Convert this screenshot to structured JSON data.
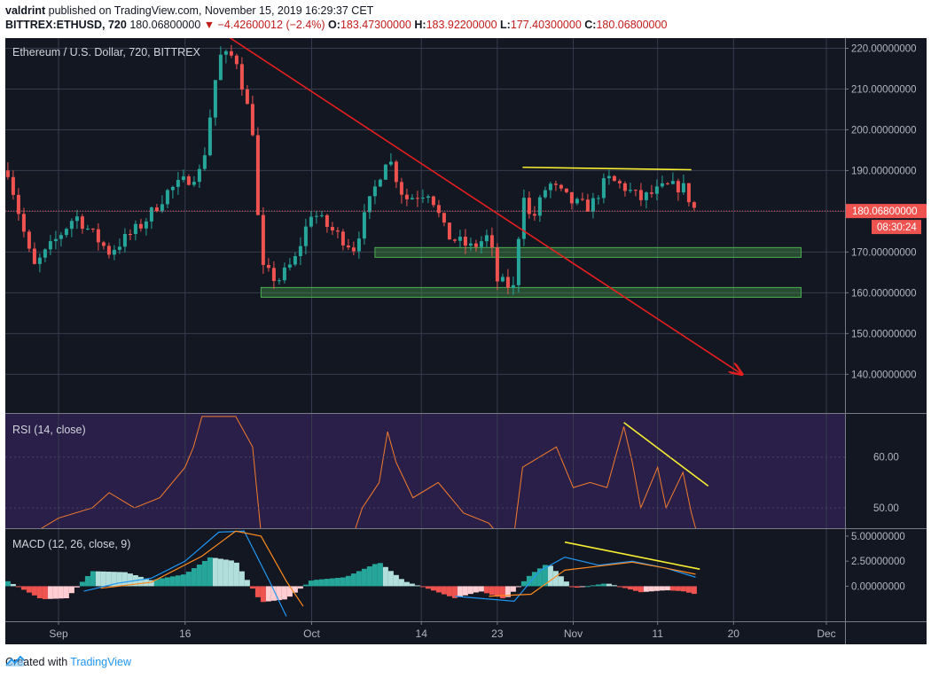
{
  "header": {
    "author": "valdrint",
    "published_text": "published on TradingView.com, November 15, 2019 16:29:37 CET",
    "symbol_line": "BITTREX:ETHUSD, 720",
    "last_price": "180.06800000",
    "change_icon": "down-triangle-icon",
    "change": "−4.42600012 (−2.4%)",
    "ohlc": [
      {
        "label": "O:",
        "value": "183.47300000"
      },
      {
        "label": "H:",
        "value": "183.92200000"
      },
      {
        "label": "L:",
        "value": "177.40300000"
      },
      {
        "label": "C:",
        "value": "180.06800000"
      }
    ]
  },
  "footer": {
    "created_with": "Created with",
    "brand": "TradingView",
    "brand_icon": "tradingview-logo-icon"
  },
  "colors": {
    "background": "#131722",
    "up": "#26a69a",
    "down": "#ef5350",
    "trendline": "#e81e1e",
    "resistance": "#f7ed32",
    "support_zone": "#4caf50",
    "rsi_line": "#f57c2c",
    "rsi_band": "#2a1f48",
    "macd_line": "#2196f3",
    "signal_line": "#ff8a1f"
  },
  "chart_data": [
    {
      "type": "candlestick",
      "title": "Ethereum / U.S. Dollar, 720, BITTREX",
      "x_labels": [
        "Sep",
        "16",
        "Oct",
        "14",
        "23",
        "Nov",
        "11",
        "20",
        "Dec"
      ],
      "y_ticks": [
        "220.00000000",
        "210.00000000",
        "200.00000000",
        "190.00000000",
        "180.00000000",
        "170.00000000",
        "160.00000000",
        "150.00000000",
        "140.00000000"
      ],
      "ylim": [
        130.5,
        222.5
      ],
      "current_price_label": "180.06800000",
      "countdown_label": "08:30:24",
      "segments": [
        [
          "2019-08-26T00:00",
          190
        ],
        [
          "2019-08-29T00:00",
          166
        ],
        [
          "2019-09-03T00:00",
          179
        ],
        [
          "2019-09-07T00:00",
          170
        ],
        [
          "2019-09-11T00:00",
          177
        ],
        [
          "2019-09-14T00:00",
          185
        ],
        [
          "2019-09-18T00:00",
          190
        ],
        [
          "2019-09-20T00:00",
          218
        ],
        [
          "2019-09-22T00:00",
          218
        ],
        [
          "2019-09-24T00:00",
          200
        ],
        [
          "2019-09-25T00:00",
          166
        ],
        [
          "2019-09-27T00:00",
          163
        ],
        [
          "2019-09-29T00:00",
          168
        ],
        [
          "2019-10-01T00:00",
          180
        ],
        [
          "2019-10-03T00:00",
          176
        ],
        [
          "2019-10-06T00:00",
          171
        ],
        [
          "2019-10-08T00:00",
          183
        ],
        [
          "2019-10-10T00:00",
          194
        ],
        [
          "2019-10-12T00:00",
          183
        ],
        [
          "2019-10-15T00:00",
          185
        ],
        [
          "2019-10-17T00:00",
          174
        ],
        [
          "2019-10-20T00:00",
          171
        ],
        [
          "2019-10-22T00:00",
          174
        ],
        [
          "2019-10-23T00:00",
          163
        ],
        [
          "2019-10-25T00:00",
          161
        ],
        [
          "2019-10-26T00:00",
          186
        ],
        [
          "2019-10-27T00:00",
          177
        ],
        [
          "2019-10-29T00:00",
          187
        ],
        [
          "2019-11-01T00:00",
          182
        ],
        [
          "2019-11-03T00:00",
          181
        ],
        [
          "2019-11-05T00:00",
          188
        ],
        [
          "2019-11-07T00:00",
          186
        ],
        [
          "2019-11-09T00:00",
          183
        ],
        [
          "2019-11-12T00:00",
          186
        ],
        [
          "2019-11-14T00:00",
          186
        ],
        [
          "2019-11-15T12:00",
          180
        ]
      ],
      "annotations": {
        "down_trendline": [
          [
            "2019-09-21T00:00",
            223
          ],
          [
            "2019-11-21T00:00",
            140
          ]
        ],
        "resistance_line": [
          [
            "2019-10-26T00:00",
            190.8
          ],
          [
            "2019-11-15T00:00",
            190.2
          ]
        ],
        "support_zones": [
          {
            "from": "2019-10-08T12:00",
            "to": "2019-11-28T00:00",
            "low": 168.7,
            "high": 171.1
          },
          {
            "from": "2019-09-25T00:00",
            "to": "2019-11-28T00:00",
            "low": 158.9,
            "high": 161.3
          }
        ]
      }
    },
    {
      "type": "line",
      "title": "RSI (14, close)",
      "y_ticks": [
        "60.00",
        "50.00"
      ],
      "ylim": [
        46.0,
        68.5
      ],
      "band": [
        45,
        70
      ],
      "series": [
        {
          "values": [
            [
              "2019-08-30T00:00",
              46
            ],
            [
              "2019-09-01T00:00",
              48
            ],
            [
              "2019-09-05T00:00",
              50
            ],
            [
              "2019-09-07T00:00",
              53
            ],
            [
              "2019-09-10T00:00",
              50
            ],
            [
              "2019-09-13T00:00",
              52
            ],
            [
              "2019-09-16T00:00",
              58
            ],
            [
              "2019-09-17T00:00",
              62
            ],
            [
              "2019-09-18T00:00",
              68
            ],
            [
              "2019-09-22T00:00",
              68
            ],
            [
              "2019-09-24T00:00",
              62
            ],
            [
              "2019-09-25T00:00",
              45
            ],
            [
              "2019-10-06T00:00",
              45
            ],
            [
              "2019-10-07T00:00",
              50
            ],
            [
              "2019-10-09T00:00",
              55
            ],
            [
              "2019-10-10T00:00",
              65
            ],
            [
              "2019-10-11T00:00",
              59
            ],
            [
              "2019-10-13T00:00",
              52
            ],
            [
              "2019-10-16T00:00",
              55
            ],
            [
              "2019-10-19T00:00",
              49
            ],
            [
              "2019-10-22T00:00",
              47
            ],
            [
              "2019-10-23T00:00",
              45
            ],
            [
              "2019-10-25T00:00",
              45
            ],
            [
              "2019-10-26T00:00",
              58
            ],
            [
              "2019-10-28T00:00",
              60
            ],
            [
              "2019-10-30T00:00",
              62
            ],
            [
              "2019-11-01T00:00",
              54
            ],
            [
              "2019-11-03T00:00",
              55
            ],
            [
              "2019-11-05T00:00",
              54
            ],
            [
              "2019-11-07T00:00",
              66
            ],
            [
              "2019-11-08T00:00",
              59
            ],
            [
              "2019-11-09T00:00",
              50
            ],
            [
              "2019-11-11T00:00",
              58
            ],
            [
              "2019-11-12T00:00",
              50
            ],
            [
              "2019-11-14T00:00",
              57
            ],
            [
              "2019-11-15T00:00",
              49
            ],
            [
              "2019-11-15T12:00",
              46
            ]
          ]
        }
      ],
      "annotations": {
        "divergence_line": [
          [
            "2019-11-07T00:00",
            66.8
          ],
          [
            "2019-11-17T00:00",
            54.3
          ]
        ]
      }
    },
    {
      "type": "macd",
      "title": "MACD (12, 26, close, 9)",
      "y_ticks": [
        "5.00000000",
        "2.50000000",
        "0.00000000"
      ],
      "ylim": [
        -3.5,
        5.7
      ],
      "histogram": [
        [
          "2019-08-26T00:00",
          0.5
        ],
        [
          "2019-08-30T00:00",
          -1.3
        ],
        [
          "2019-09-02T00:00",
          -1.2
        ],
        [
          "2019-09-05T00:00",
          1.5
        ],
        [
          "2019-09-09T00:00",
          1.4
        ],
        [
          "2019-09-12T00:00",
          0.6
        ],
        [
          "2019-09-16T00:00",
          1.2
        ],
        [
          "2019-09-19T00:00",
          2.9
        ],
        [
          "2019-09-22T00:00",
          2.5
        ],
        [
          "2019-09-25T00:00",
          -1.6
        ],
        [
          "2019-09-28T00:00",
          -1.3
        ],
        [
          "2019-10-01T00:00",
          0.6
        ],
        [
          "2019-10-05T00:00",
          0.9
        ],
        [
          "2019-10-09T00:00",
          2.4
        ],
        [
          "2019-10-12T00:00",
          0.5
        ],
        [
          "2019-10-15T00:00",
          -0.3
        ],
        [
          "2019-10-18T00:00",
          -1.2
        ],
        [
          "2019-10-21T00:00",
          -0.5
        ],
        [
          "2019-10-24T00:00",
          -1.3
        ],
        [
          "2019-10-27T00:00",
          1.2
        ],
        [
          "2019-10-29T00:00",
          2.3
        ],
        [
          "2019-11-01T00:00",
          -0.2
        ],
        [
          "2019-11-05T00:00",
          0.3
        ],
        [
          "2019-11-09T00:00",
          -0.6
        ],
        [
          "2019-11-12T00:00",
          -0.4
        ],
        [
          "2019-11-14T00:00",
          -0.5
        ],
        [
          "2019-11-15T12:00",
          -0.8
        ]
      ],
      "series": [
        {
          "values": [
            [
              "2019-09-04T00:00",
              -0.5
            ],
            [
              "2019-09-08T00:00",
              0.3
            ],
            [
              "2019-09-12T00:00",
              0.8
            ],
            [
              "2019-09-16T00:00",
              2.5
            ],
            [
              "2019-09-20T00:00",
              5.4
            ],
            [
              "2019-09-23T00:00",
              5.5
            ],
            [
              "2019-09-26T00:00",
              0.5
            ],
            [
              "2019-09-28T00:00",
              -3.0
            ]
          ]
        },
        {
          "values": [
            [
              "2019-09-06T00:00",
              -0.2
            ],
            [
              "2019-09-12T00:00",
              0.4
            ],
            [
              "2019-09-18T00:00",
              3.0
            ],
            [
              "2019-09-22T00:00",
              5.5
            ],
            [
              "2019-09-25T00:00",
              5.0
            ],
            [
              "2019-09-28T00:00",
              0.5
            ],
            [
              "2019-09-30T00:00",
              -2.0
            ]
          ]
        },
        {
          "values": [
            [
              "2019-10-18T00:00",
              -1.0
            ],
            [
              "2019-10-25T00:00",
              -1.5
            ],
            [
              "2019-10-28T00:00",
              1.5
            ],
            [
              "2019-10-31T00:00",
              2.9
            ],
            [
              "2019-11-04T00:00",
              2.1
            ],
            [
              "2019-11-08T00:00",
              2.5
            ],
            [
              "2019-11-12T00:00",
              1.8
            ],
            [
              "2019-11-15T12:00",
              0.9
            ]
          ]
        },
        {
          "values": [
            [
              "2019-10-22T00:00",
              -1.0
            ],
            [
              "2019-10-27T00:00",
              -0.8
            ],
            [
              "2019-10-31T00:00",
              1.6
            ],
            [
              "2019-11-04T00:00",
              2.0
            ],
            [
              "2019-11-08T00:00",
              2.4
            ],
            [
              "2019-11-12T00:00",
              1.8
            ],
            [
              "2019-11-15T12:00",
              1.2
            ]
          ]
        }
      ],
      "annotations": {
        "divergence_line": [
          [
            "2019-10-31T00:00",
            4.4
          ],
          [
            "2019-11-16T00:00",
            1.7
          ]
        ]
      }
    }
  ]
}
